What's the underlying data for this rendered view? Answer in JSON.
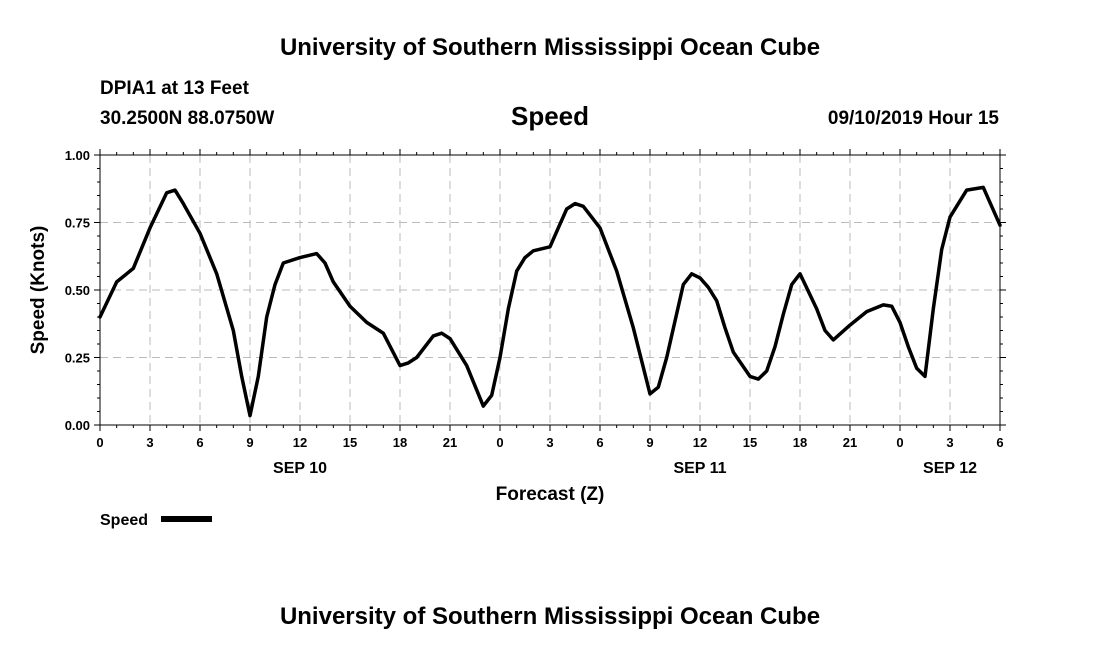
{
  "header": {
    "title": "University of Southern Mississippi Ocean Cube",
    "station": "DPIA1 at 13 Feet",
    "location": "30.2500N 88.0750W",
    "datetime": "09/10/2019 Hour 15"
  },
  "footer": {
    "title": "University of Southern Mississippi Ocean Cube"
  },
  "colors": {
    "line": "#000000",
    "grid": "#bbbbbb"
  },
  "chart_data": {
    "type": "line",
    "title": "Speed",
    "xlabel": "Forecast (Z)",
    "ylabel": "Speed (Knots)",
    "ylim": [
      0,
      1
    ],
    "xlim": [
      0,
      54
    ],
    "x_units": "hours from SEP 10 00Z",
    "yticks": [
      0,
      0.25,
      0.5,
      0.75,
      1.0
    ],
    "ytick_labels": [
      "0.00",
      "0.25",
      "0.50",
      "0.75",
      "1.00"
    ],
    "xticks": [
      0,
      3,
      6,
      9,
      12,
      15,
      18,
      21,
      24,
      27,
      30,
      33,
      36,
      39,
      42,
      45,
      48,
      51,
      54
    ],
    "xtick_labels": [
      "0",
      "3",
      "6",
      "9",
      "12",
      "15",
      "18",
      "21",
      "0",
      "3",
      "6",
      "9",
      "12",
      "15",
      "18",
      "21",
      "0",
      "3",
      "6"
    ],
    "day_labels": [
      {
        "x": 12,
        "label": "SEP 10"
      },
      {
        "x": 36,
        "label": "SEP 11"
      },
      {
        "x": 51,
        "label": "SEP 12"
      }
    ],
    "grid": true,
    "legend": {
      "position": "bottom-left",
      "label": "Speed"
    },
    "series": [
      {
        "name": "Speed",
        "x": [
          0,
          1,
          2,
          3,
          4,
          4.5,
          5,
          6,
          7,
          8,
          8.5,
          9,
          9.5,
          10,
          10.5,
          11,
          12,
          13,
          13.5,
          14,
          15,
          16,
          17,
          18,
          18.5,
          19,
          20,
          20.5,
          21,
          22,
          23,
          23.5,
          24,
          24.5,
          25,
          25.5,
          26,
          27,
          27.5,
          28,
          28.5,
          29,
          30,
          31,
          32,
          33,
          33.5,
          34,
          35,
          35.5,
          36,
          36.5,
          37,
          37.5,
          38,
          39,
          39.5,
          40,
          40.5,
          41,
          41.5,
          42,
          43,
          43.5,
          44,
          45,
          46,
          47,
          47.5,
          48,
          48.5,
          49,
          49.5,
          50,
          50.5,
          51,
          52,
          53,
          54
        ],
        "y": [
          0.4,
          0.53,
          0.58,
          0.73,
          0.86,
          0.87,
          0.82,
          0.71,
          0.56,
          0.35,
          0.18,
          0.035,
          0.18,
          0.4,
          0.52,
          0.6,
          0.62,
          0.635,
          0.6,
          0.53,
          0.44,
          0.38,
          0.34,
          0.22,
          0.23,
          0.25,
          0.33,
          0.34,
          0.32,
          0.22,
          0.07,
          0.11,
          0.25,
          0.43,
          0.57,
          0.62,
          0.645,
          0.66,
          0.73,
          0.8,
          0.82,
          0.81,
          0.73,
          0.57,
          0.36,
          0.115,
          0.14,
          0.25,
          0.52,
          0.56,
          0.545,
          0.51,
          0.46,
          0.36,
          0.27,
          0.18,
          0.17,
          0.2,
          0.29,
          0.41,
          0.52,
          0.56,
          0.43,
          0.35,
          0.315,
          0.37,
          0.42,
          0.445,
          0.44,
          0.38,
          0.29,
          0.21,
          0.18,
          0.43,
          0.65,
          0.77,
          0.87,
          0.88,
          0.74
        ]
      }
    ]
  }
}
